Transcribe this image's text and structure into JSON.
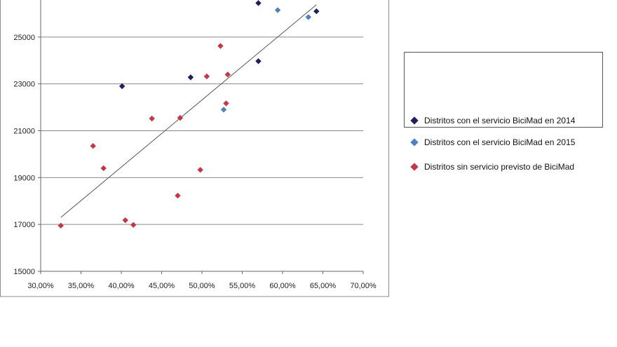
{
  "chart_data": {
    "type": "scatter",
    "title": "",
    "xlabel": "",
    "ylabel": "",
    "xlim": [
      0.3,
      0.7
    ],
    "ylim": [
      15000,
      27000
    ],
    "x_ticks": [
      "30,00%",
      "35,00%",
      "40,00%",
      "45,00%",
      "50,00%",
      "55,00%",
      "60,00%",
      "65,00%",
      "70,00%"
    ],
    "y_ticks": [
      "15000",
      "17000",
      "19000",
      "21000",
      "23000",
      "25000"
    ],
    "grid": "horizontal",
    "legend_position": "right",
    "series": [
      {
        "name": "Distritos con el servicio BiciMad en 2014",
        "color": "#1f1f5c",
        "points": [
          [
            0.401,
            22900
          ],
          [
            0.486,
            23280
          ],
          [
            0.57,
            26450
          ],
          [
            0.57,
            23970
          ],
          [
            0.642,
            26100
          ]
        ]
      },
      {
        "name": "Distritos con el servicio BiciMad en 2015",
        "color": "#4f81bd",
        "points": [
          [
            0.527,
            21900
          ],
          [
            0.594,
            26150
          ],
          [
            0.632,
            25850
          ]
        ]
      },
      {
        "name": "Distritos sin servicio previsto de BiciMad",
        "color": "#c0394b",
        "points": [
          [
            0.325,
            16950
          ],
          [
            0.365,
            20350
          ],
          [
            0.378,
            19400
          ],
          [
            0.405,
            17180
          ],
          [
            0.415,
            16980
          ],
          [
            0.438,
            21520
          ],
          [
            0.47,
            18230
          ],
          [
            0.473,
            21550
          ],
          [
            0.498,
            19330
          ],
          [
            0.506,
            23320
          ],
          [
            0.523,
            24620
          ],
          [
            0.53,
            22170
          ],
          [
            0.532,
            23400
          ]
        ]
      }
    ],
    "trendline": {
      "color": "#555555",
      "points": [
        [
          0.325,
          17300
        ],
        [
          0.642,
          26380
        ]
      ]
    }
  }
}
